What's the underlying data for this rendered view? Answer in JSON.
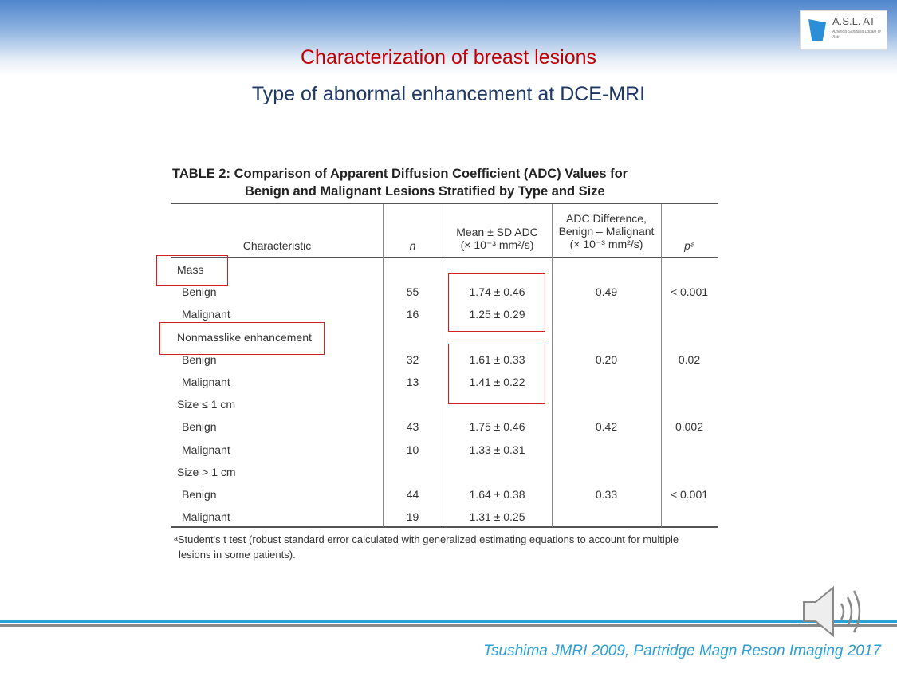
{
  "logo": {
    "name": "A.S.L. AT",
    "subtitle": "Azienda Sanitaria Locale di Asti"
  },
  "slide": {
    "title": "Characterization of breast lesions",
    "subtitle": "Type of abnormal enhancement at DCE-MRI",
    "citation": "Tsushima JMRI 2009, Partridge Magn Reson Imaging 2017"
  },
  "table": {
    "caption_line1": "TABLE 2:  Comparison of Apparent Diffusion Coefficient (ADC) Values for",
    "caption_line2": "Benign and Malignant Lesions Stratified by Type and Size",
    "headers": {
      "characteristic": "Characteristic",
      "n": "n",
      "mean_l1": "Mean ± SD ADC",
      "mean_l2": "(× 10⁻³ mm²/s)",
      "diff_l1": "ADC Difference,",
      "diff_l2": "Benign – Malignant",
      "diff_l3": "(× 10⁻³ mm²/s)",
      "p": "pᵃ"
    },
    "rows": [
      {
        "label": "Mass",
        "n": "",
        "mean": "",
        "diff": "",
        "p": ""
      },
      {
        "label": "Benign",
        "n": "55",
        "mean": "1.74 ± 0.46",
        "diff": "0.49",
        "p": "< 0.001"
      },
      {
        "label": "Malignant",
        "n": "16",
        "mean": "1.25 ± 0.29",
        "diff": "",
        "p": ""
      },
      {
        "label": "Nonmasslike enhancement",
        "n": "",
        "mean": "",
        "diff": "",
        "p": ""
      },
      {
        "label": "Benign",
        "n": "32",
        "mean": "1.61 ± 0.33",
        "diff": "0.20",
        "p": "0.02"
      },
      {
        "label": "Malignant",
        "n": "13",
        "mean": "1.41 ± 0.22",
        "diff": "",
        "p": ""
      },
      {
        "label": "Size ≤ 1 cm",
        "n": "",
        "mean": "",
        "diff": "",
        "p": ""
      },
      {
        "label": "Benign",
        "n": "43",
        "mean": "1.75 ± 0.46",
        "diff": "0.42",
        "p": "0.002"
      },
      {
        "label": "Malignant",
        "n": "10",
        "mean": "1.33 ± 0.31",
        "diff": "",
        "p": ""
      },
      {
        "label": "Size > 1 cm",
        "n": "",
        "mean": "",
        "diff": "",
        "p": ""
      },
      {
        "label": "Benign",
        "n": "44",
        "mean": "1.64 ± 0.38",
        "diff": "0.33",
        "p": "< 0.001"
      },
      {
        "label": "Malignant",
        "n": "19",
        "mean": "1.31 ± 0.25",
        "diff": "",
        "p": ""
      }
    ],
    "footnote_l1": "ᵃStudent's t test (robust standard error calculated with generalized estimating equations to account for multiple",
    "footnote_l2": "lesions in some patients)."
  },
  "colors": {
    "title": "#c00000",
    "subtitle": "#1f3864",
    "highlight_box": "#d02020",
    "accent": "#2b9fd8"
  },
  "icons": [
    "speaker-icon",
    "asl-logo"
  ]
}
